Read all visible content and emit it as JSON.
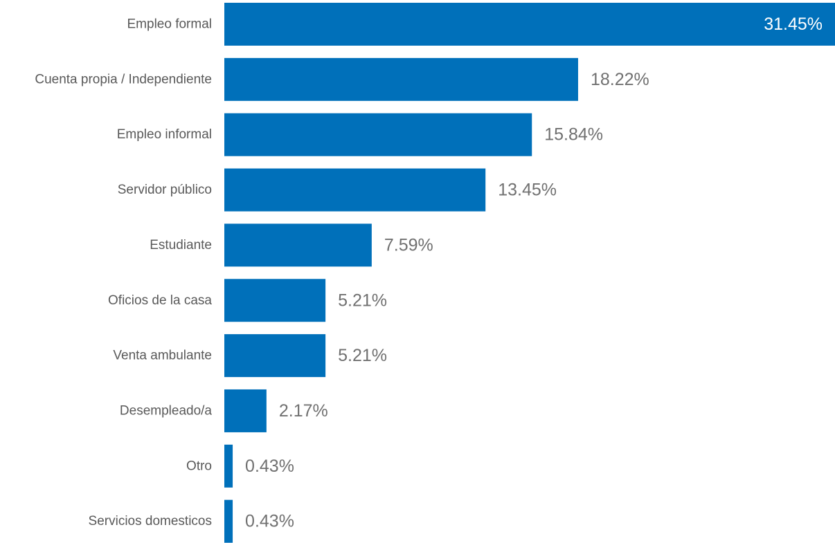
{
  "chart_data": {
    "type": "bar",
    "orientation": "horizontal",
    "categories": [
      "Empleo formal",
      "Cuenta propia / Independiente",
      "Empleo informal",
      "Servidor público",
      "Estudiante",
      "Oficios de la casa",
      "Venta ambulante",
      "Desempleado/a",
      "Otro",
      "Servicios domesticos"
    ],
    "values": [
      31.45,
      18.22,
      15.84,
      13.45,
      7.59,
      5.21,
      5.21,
      2.17,
      0.43,
      0.43
    ],
    "value_labels": [
      "31.45%",
      "18.22%",
      "15.84%",
      "13.45%",
      "7.59%",
      "5.21%",
      "5.21%",
      "2.17%",
      "0.43%",
      "0.43%"
    ],
    "xlim": [
      0,
      31.45
    ],
    "grid": false,
    "legend": "none",
    "colors": {
      "bar": "#0070BA",
      "category_text": "#595959",
      "value_text": "#707070",
      "value_text_inside": "#FFFFFF"
    }
  }
}
